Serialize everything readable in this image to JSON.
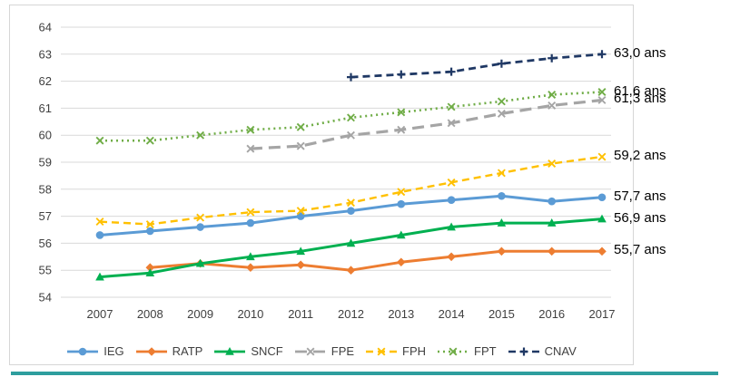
{
  "chart_data": {
    "type": "line",
    "title": "",
    "xlabel": "",
    "ylabel": "",
    "x": [
      "2007",
      "2008",
      "2009",
      "2010",
      "2011",
      "2012",
      "2013",
      "2014",
      "2015",
      "2016",
      "2017"
    ],
    "ylim": [
      54,
      64
    ],
    "yticks": [
      54,
      55,
      56,
      57,
      58,
      59,
      60,
      61,
      62,
      63,
      64
    ],
    "grid": true,
    "legend_position": "bottom",
    "series": [
      {
        "name": "IEG",
        "color": "#5B9BD5",
        "line_style": "solid",
        "marker": "circle",
        "end_label": "57,7 ans",
        "values": [
          56.3,
          56.45,
          56.6,
          56.75,
          57.0,
          57.2,
          57.45,
          57.6,
          57.75,
          57.55,
          57.7
        ]
      },
      {
        "name": "RATP",
        "color": "#ED7D31",
        "line_style": "solid",
        "marker": "diamond",
        "end_label": "55,7 ans",
        "values": [
          null,
          55.1,
          55.25,
          55.1,
          55.2,
          55.0,
          55.3,
          55.5,
          55.7,
          55.7,
          55.7
        ]
      },
      {
        "name": "SNCF",
        "color": "#00B050",
        "line_style": "solid",
        "marker": "triangle",
        "end_label": "56,9 ans",
        "values": [
          54.75,
          54.9,
          55.25,
          55.5,
          55.7,
          56.0,
          56.3,
          56.6,
          56.75,
          56.75,
          56.9
        ]
      },
      {
        "name": "FPE",
        "color": "#A5A5A5",
        "line_style": "longdash",
        "marker": "x",
        "end_label": "61,3 ans",
        "values": [
          null,
          null,
          null,
          59.5,
          59.6,
          60.0,
          60.2,
          60.45,
          60.8,
          61.1,
          61.3
        ]
      },
      {
        "name": "FPH",
        "color": "#FFC000",
        "line_style": "dash",
        "marker": "x",
        "end_label": "59,2 ans",
        "values": [
          56.8,
          56.7,
          56.95,
          57.15,
          57.2,
          57.5,
          57.9,
          58.25,
          58.6,
          58.95,
          59.2
        ]
      },
      {
        "name": "FPT",
        "color": "#70AD47",
        "line_style": "dot",
        "marker": "x",
        "end_label": "61,6 ans",
        "values": [
          59.8,
          59.8,
          60.0,
          60.2,
          60.3,
          60.65,
          60.85,
          61.05,
          61.25,
          61.5,
          61.6
        ]
      },
      {
        "name": "CNAV",
        "color": "#1F3864",
        "line_style": "dash",
        "marker": "plus",
        "end_label": "63,0 ans",
        "values": [
          null,
          null,
          null,
          null,
          null,
          62.15,
          62.25,
          62.35,
          62.65,
          62.85,
          63.0
        ]
      }
    ]
  },
  "colors": {
    "grid": "#D9D9D9",
    "axis_text": "#404040",
    "frame_border": "#D6D6D6",
    "background": "#FFFFFF",
    "end_label_text": "#000000",
    "bottom_strip": "#2E9E9E"
  }
}
